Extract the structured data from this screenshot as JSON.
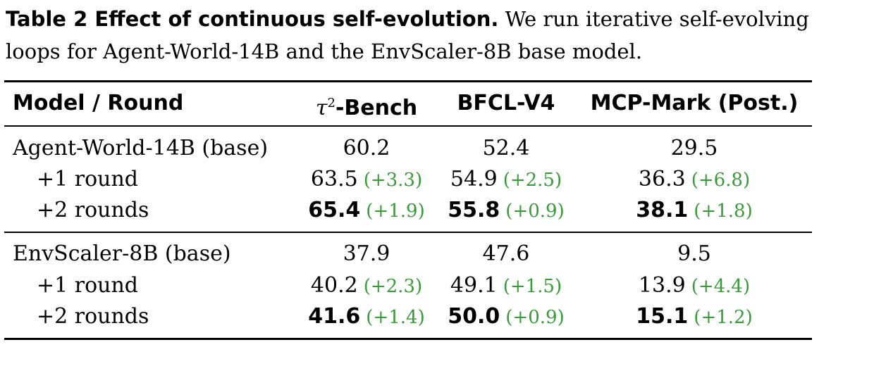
{
  "caption": {
    "label": "Table 2  Effect of continuous self-evolution.",
    "text": " We run iterative self-evolving loops for Agent-World-14B and the EnvScaler-8B base model."
  },
  "table": {
    "headers": {
      "model": "Model / Round",
      "tau_symbol": "τ",
      "tau_sup": "2",
      "tau_rest": "-Bench",
      "bfcl": "BFCL-V4",
      "mcp": "MCP-Mark (Post.)"
    },
    "groups": [
      {
        "rows": [
          {
            "label": "Agent-World-14B (base)",
            "tau": {
              "value": "60.2",
              "delta": ""
            },
            "bfcl": {
              "value": "52.4",
              "delta": ""
            },
            "mcp": {
              "value": "29.5",
              "delta": ""
            }
          },
          {
            "label": "+1 round",
            "tau": {
              "value": "63.5",
              "delta": "(+3.3)"
            },
            "bfcl": {
              "value": "54.9",
              "delta": "(+2.5)"
            },
            "mcp": {
              "value": "36.3",
              "delta": "(+6.8)"
            }
          },
          {
            "label": "+2 rounds",
            "tau": {
              "value": "65.4",
              "delta": "(+1.9)"
            },
            "bfcl": {
              "value": "55.8",
              "delta": "(+0.9)"
            },
            "mcp": {
              "value": "38.1",
              "delta": "(+1.8)"
            }
          }
        ]
      },
      {
        "rows": [
          {
            "label": "EnvScaler-8B (base)",
            "tau": {
              "value": "37.9",
              "delta": ""
            },
            "bfcl": {
              "value": "47.6",
              "delta": ""
            },
            "mcp": {
              "value": "9.5",
              "delta": ""
            }
          },
          {
            "label": "+1 round",
            "tau": {
              "value": "40.2",
              "delta": "(+2.3)"
            },
            "bfcl": {
              "value": "49.1",
              "delta": "(+1.5)"
            },
            "mcp": {
              "value": "13.9",
              "delta": "(+4.4)"
            }
          },
          {
            "label": "+2 rounds",
            "tau": {
              "value": "41.6",
              "delta": "(+1.4)"
            },
            "bfcl": {
              "value": "50.0",
              "delta": "(+0.9)"
            },
            "mcp": {
              "value": "15.1",
              "delta": "(+1.2)"
            }
          }
        ]
      }
    ]
  },
  "colors": {
    "delta_green": "#3a9a3a",
    "text": "#000000"
  }
}
